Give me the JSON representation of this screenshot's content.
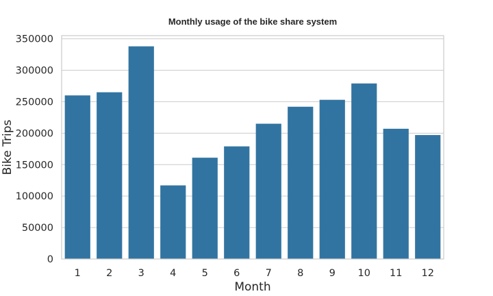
{
  "chart_data": {
    "type": "bar",
    "title": "Monthly usage of the bike share system",
    "xlabel": "Month",
    "ylabel": "Bike Trips",
    "categories": [
      "1",
      "2",
      "3",
      "4",
      "5",
      "6",
      "7",
      "8",
      "9",
      "10",
      "11",
      "12"
    ],
    "values": [
      260000,
      265000,
      338000,
      117000,
      161000,
      179000,
      215000,
      242000,
      253000,
      279000,
      207000,
      197000
    ],
    "ylim": [
      0,
      355000
    ],
    "yticks": [
      0,
      50000,
      100000,
      150000,
      200000,
      250000,
      300000,
      350000
    ],
    "grid": "horizontal",
    "bar_color": "#3274a1",
    "legend": "none"
  }
}
